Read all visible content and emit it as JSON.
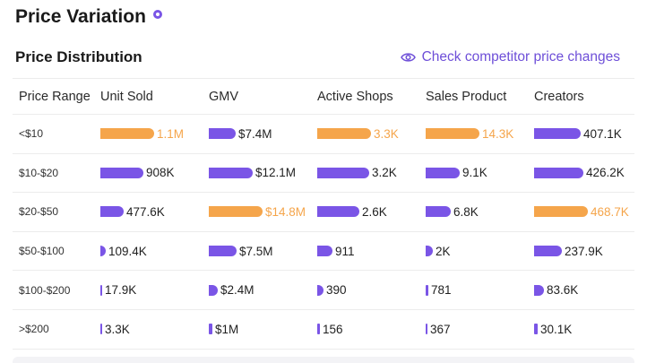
{
  "header": {
    "title": "Price Variation",
    "title_icon": "info-dot-icon"
  },
  "section": {
    "subtitle": "Price Distribution",
    "link_label": "Check competitor price changes",
    "link_icon": "eye-icon"
  },
  "colors": {
    "accent": "#7a55e6",
    "highlight": "#f5a54b"
  },
  "table": {
    "columns": [
      "Price Range",
      "Unit Sold",
      "GMV",
      "Active Shops",
      "Sales Product",
      "Creators"
    ],
    "rows": [
      {
        "range": "<$10",
        "cells": [
          {
            "value": "1.1M",
            "level": 1.0,
            "highlight": true
          },
          {
            "value": "$7.4M",
            "level": 0.5,
            "highlight": false
          },
          {
            "value": "3.3K",
            "level": 1.0,
            "highlight": true
          },
          {
            "value": "14.3K",
            "level": 1.0,
            "highlight": true
          },
          {
            "value": "407.1K",
            "level": 0.87,
            "highlight": false
          }
        ]
      },
      {
        "range": "$10-$20",
        "cells": [
          {
            "value": "908K",
            "level": 0.8,
            "highlight": false
          },
          {
            "value": "$12.1M",
            "level": 0.82,
            "highlight": false
          },
          {
            "value": "3.2K",
            "level": 0.97,
            "highlight": false
          },
          {
            "value": "9.1K",
            "level": 0.63,
            "highlight": false
          },
          {
            "value": "426.2K",
            "level": 0.91,
            "highlight": false
          }
        ]
      },
      {
        "range": "$20-$50",
        "cells": [
          {
            "value": "477.6K",
            "level": 0.43,
            "highlight": false
          },
          {
            "value": "$14.8M",
            "level": 1.0,
            "highlight": true
          },
          {
            "value": "2.6K",
            "level": 0.79,
            "highlight": false
          },
          {
            "value": "6.8K",
            "level": 0.47,
            "highlight": false
          },
          {
            "value": "468.7K",
            "level": 1.0,
            "highlight": true
          }
        ]
      },
      {
        "range": "$50-$100",
        "cells": [
          {
            "value": "109.4K",
            "level": 0.1,
            "highlight": false
          },
          {
            "value": "$7.5M",
            "level": 0.51,
            "highlight": false
          },
          {
            "value": "911",
            "level": 0.28,
            "highlight": false
          },
          {
            "value": "2K",
            "level": 0.14,
            "highlight": false
          },
          {
            "value": "237.9K",
            "level": 0.51,
            "highlight": false
          }
        ]
      },
      {
        "range": "$100-$200",
        "cells": [
          {
            "value": "17.9K",
            "level": 0.02,
            "highlight": false
          },
          {
            "value": "$2.4M",
            "level": 0.16,
            "highlight": false
          },
          {
            "value": "390",
            "level": 0.12,
            "highlight": false
          },
          {
            "value": "781",
            "level": 0.05,
            "highlight": false
          },
          {
            "value": "83.6K",
            "level": 0.18,
            "highlight": false
          }
        ]
      },
      {
        "range": ">$200",
        "cells": [
          {
            "value": "3.3K",
            "level": 0.005,
            "highlight": false
          },
          {
            "value": "$1M",
            "level": 0.07,
            "highlight": false
          },
          {
            "value": "156",
            "level": 0.05,
            "highlight": false
          },
          {
            "value": "367",
            "level": 0.03,
            "highlight": false
          },
          {
            "value": "30.1K",
            "level": 0.06,
            "highlight": false
          }
        ]
      }
    ]
  }
}
